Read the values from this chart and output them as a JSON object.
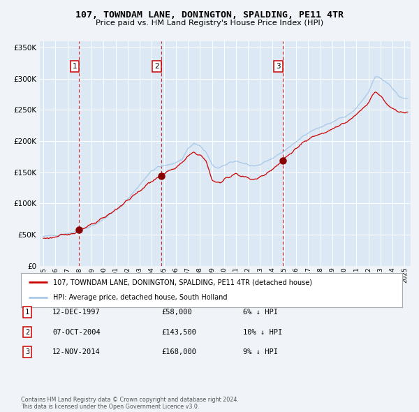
{
  "title": "107, TOWNDAM LANE, DONINGTON, SPALDING, PE11 4TR",
  "subtitle": "Price paid vs. HM Land Registry's House Price Index (HPI)",
  "legend_line1": "107, TOWNDAM LANE, DONINGTON, SPALDING, PE11 4TR (detached house)",
  "legend_line2": "HPI: Average price, detached house, South Holland",
  "table_rows": [
    {
      "num": "1",
      "date": "12-DEC-1997",
      "price": "£58,000",
      "pct": "6% ↓ HPI"
    },
    {
      "num": "2",
      "date": "07-OCT-2004",
      "price": "£143,500",
      "pct": "10% ↓ HPI"
    },
    {
      "num": "3",
      "date": "12-NOV-2014",
      "price": "£168,000",
      "pct": "9% ↓ HPI"
    }
  ],
  "footer": "Contains HM Land Registry data © Crown copyright and database right 2024.\nThis data is licensed under the Open Government Licence v3.0.",
  "hpi_color": "#a8c8e8",
  "price_color": "#cc0000",
  "sale_dot_color": "#880000",
  "vline_color": "#cc0000",
  "bg_color": "#f0f4f8",
  "plot_bg_color": "#dce8f4",
  "grid_color": "#ffffff",
  "legend_bg": "#ffffff",
  "legend_border": "#aaaaaa",
  "ylim": [
    0,
    360000
  ],
  "yticks": [
    0,
    50000,
    100000,
    150000,
    200000,
    250000,
    300000,
    350000
  ],
  "xstart": 1994.7,
  "xend": 2025.5,
  "sale_dates_float": [
    1997.95,
    2004.77,
    2014.87
  ],
  "sale_prices": [
    58000,
    143500,
    168000
  ],
  "sale_labels": [
    "1",
    "2",
    "3"
  ],
  "hpi_anchors_t": [
    1995.0,
    1996.0,
    1997.0,
    1997.5,
    1998.5,
    1999.5,
    2000.5,
    2001.5,
    2002.5,
    2003.5,
    2004.0,
    2004.5,
    2005.5,
    2006.5,
    2007.0,
    2007.5,
    2008.0,
    2008.5,
    2009.0,
    2009.5,
    2010.0,
    2010.5,
    2011.0,
    2011.5,
    2012.0,
    2012.5,
    2013.0,
    2013.5,
    2014.0,
    2014.5,
    2015.0,
    2015.5,
    2016.0,
    2016.5,
    2017.0,
    2017.5,
    2018.0,
    2018.5,
    2019.0,
    2019.5,
    2020.0,
    2020.5,
    2021.0,
    2021.5,
    2022.0,
    2022.3,
    2022.6,
    2022.9,
    2023.2,
    2023.5,
    2023.8,
    2024.1,
    2024.5,
    2025.0
  ],
  "hpi_anchors_v": [
    47000,
    49000,
    52000,
    54000,
    60000,
    68000,
    82000,
    96000,
    118000,
    142000,
    152000,
    158000,
    162000,
    170000,
    188000,
    196000,
    192000,
    182000,
    162000,
    156000,
    160000,
    166000,
    168000,
    165000,
    162000,
    158000,
    162000,
    168000,
    172000,
    178000,
    184000,
    192000,
    198000,
    207000,
    214000,
    218000,
    222000,
    226000,
    230000,
    236000,
    238000,
    244000,
    252000,
    265000,
    278000,
    292000,
    304000,
    302000,
    298000,
    294000,
    290000,
    282000,
    272000,
    268000
  ],
  "price_anchors_t": [
    1995.0,
    1996.0,
    1997.0,
    1997.5,
    1997.95,
    1998.5,
    1999.0,
    2000.0,
    2001.0,
    2002.0,
    2003.0,
    2003.5,
    2004.0,
    2004.77,
    2005.0,
    2005.5,
    2006.0,
    2006.5,
    2007.0,
    2007.5,
    2008.0,
    2008.5,
    2009.0,
    2009.3,
    2009.7,
    2010.0,
    2010.5,
    2011.0,
    2011.5,
    2012.0,
    2012.5,
    2013.0,
    2013.5,
    2014.0,
    2014.5,
    2014.87,
    2015.0,
    2015.5,
    2016.0,
    2016.5,
    2017.0,
    2017.5,
    2018.0,
    2018.5,
    2019.0,
    2019.5,
    2020.0,
    2020.5,
    2021.0,
    2021.5,
    2022.0,
    2022.3,
    2022.6,
    2022.9,
    2023.2,
    2023.5,
    2024.0,
    2024.5,
    2025.0
  ],
  "price_anchors_v": [
    44000,
    46000,
    50000,
    53000,
    58000,
    62000,
    65000,
    76000,
    90000,
    105000,
    120000,
    128000,
    136000,
    143500,
    148000,
    152000,
    158000,
    164000,
    175000,
    182000,
    178000,
    168000,
    138000,
    135000,
    132000,
    138000,
    144000,
    148000,
    144000,
    140000,
    138000,
    142000,
    148000,
    156000,
    162000,
    168000,
    172000,
    180000,
    188000,
    196000,
    202000,
    208000,
    212000,
    216000,
    220000,
    224000,
    228000,
    234000,
    242000,
    252000,
    262000,
    274000,
    278000,
    274000,
    268000,
    260000,
    252000,
    248000,
    246000
  ],
  "noise_seed_hpi": 42,
  "noise_seed_price": 123,
  "noise_hpi": 1200,
  "noise_price": 1800
}
